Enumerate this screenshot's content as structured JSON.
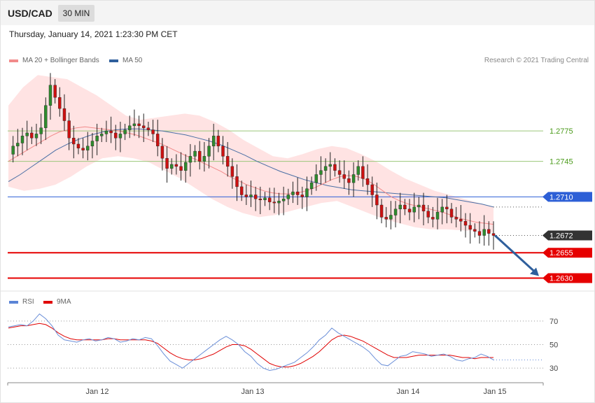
{
  "header": {
    "pair": "USD/CAD",
    "timeframe": "30 MIN",
    "datetime": "Thursday, January 14, 2021 1:23:30 PM CET"
  },
  "legend": {
    "ma20_bb": "MA 20 + Bollinger Bands",
    "ma50": "MA 50",
    "rsi": "RSI",
    "rsi_ma": "9MA"
  },
  "credit": "Research © 2021 Trading Central",
  "colors": {
    "bullish": "#2e8b2e",
    "bearish": "#cc1111",
    "bollinger_fill": "#ffe3e3",
    "ma20": "#f28b8b",
    "ma50": "#4a6fa5",
    "resistance": "#9bc77a",
    "pivot": "#2d5fd6",
    "support": "#e60000",
    "current_price_tag": "#333333",
    "arrow": "#2f5f9c"
  },
  "chart_data": [
    {
      "type": "candlestick",
      "title": "USD/CAD 30 MIN",
      "x_ticks": [
        "Jan 12",
        "Jan 13",
        "Jan 14",
        "Jan 15"
      ],
      "ylim": [
        1.262,
        1.2835
      ],
      "levels": [
        {
          "value": 1.2775,
          "label": "1.2775",
          "kind": "resistance"
        },
        {
          "value": 1.2745,
          "label": "1.2745",
          "kind": "resistance"
        },
        {
          "value": 1.271,
          "label": "1.2710",
          "kind": "pivot"
        },
        {
          "value": 1.2672,
          "label": "1.2672",
          "kind": "current"
        },
        {
          "value": 1.2655,
          "label": "1.2655",
          "kind": "support"
        },
        {
          "value": 1.263,
          "label": "1.2630",
          "kind": "support"
        }
      ],
      "close_path": [
        1.2752,
        1.276,
        1.2763,
        1.277,
        1.2773,
        1.2768,
        1.2772,
        1.2778,
        1.28,
        1.282,
        1.2808,
        1.2797,
        1.2785,
        1.2768,
        1.2762,
        1.2758,
        1.2756,
        1.276,
        1.2765,
        1.277,
        1.2772,
        1.2775,
        1.2773,
        1.2768,
        1.2772,
        1.2776,
        1.278,
        1.2782,
        1.278,
        1.2778,
        1.2776,
        1.2772,
        1.276,
        1.2748,
        1.2738,
        1.2742,
        1.274,
        1.2736,
        1.2744,
        1.275,
        1.2755,
        1.2745,
        1.275,
        1.276,
        1.277,
        1.276,
        1.275,
        1.274,
        1.273,
        1.272,
        1.2712,
        1.271,
        1.2712,
        1.2708,
        1.2707,
        1.2709,
        1.2705,
        1.2704,
        1.2706,
        1.2708,
        1.2712,
        1.2715,
        1.2712,
        1.271,
        1.2718,
        1.2724,
        1.2732,
        1.2736,
        1.274,
        1.2742,
        1.2736,
        1.2732,
        1.2728,
        1.2724,
        1.2732,
        1.274,
        1.2728,
        1.2722,
        1.2712,
        1.2702,
        1.269,
        1.2688,
        1.2692,
        1.2698,
        1.2702,
        1.2698,
        1.2695,
        1.27,
        1.2702,
        1.2696,
        1.269,
        1.2688,
        1.2695,
        1.27,
        1.2698,
        1.269,
        1.2688,
        1.2686,
        1.2682,
        1.2678,
        1.2676,
        1.2672,
        1.2678,
        1.2674,
        1.2672
      ],
      "ma20": [
        1.2745,
        1.275,
        1.2755,
        1.276,
        1.2765,
        1.277,
        1.2774,
        1.2776,
        1.2778,
        1.2779,
        1.2778,
        1.2777,
        1.2776,
        1.2775,
        1.2773,
        1.2771,
        1.2768,
        1.2765,
        1.2762,
        1.2758,
        1.2754,
        1.275,
        1.2747,
        1.2743,
        1.2739,
        1.2735,
        1.273,
        1.2726,
        1.2722,
        1.2719,
        1.2716,
        1.2714,
        1.2713,
        1.2713,
        1.2714,
        1.2716,
        1.2719,
        1.2723,
        1.2727,
        1.273,
        1.2731,
        1.273,
        1.2727,
        1.2722,
        1.2716,
        1.271,
        1.2706,
        1.2703,
        1.2701,
        1.2699,
        1.2697,
        1.2695,
        1.2692,
        1.2689,
        1.2687,
        1.2685,
        1.2684,
        1.2683
      ],
      "ma50": [
        1.2725,
        1.2732,
        1.274,
        1.2748,
        1.2756,
        1.2762,
        1.2767,
        1.2771,
        1.2774,
        1.2776,
        1.2777,
        1.2777,
        1.2776,
        1.2775,
        1.2773,
        1.2771,
        1.2768,
        1.2765,
        1.2761,
        1.2756,
        1.2751,
        1.2745,
        1.274,
        1.2735,
        1.2731,
        1.2727,
        1.2724,
        1.2721,
        1.2719,
        1.2717,
        1.2716,
        1.2715,
        1.2714,
        1.2713,
        1.2712,
        1.2711,
        1.271,
        1.2709,
        1.2707,
        1.2705,
        1.2703,
        1.27
      ],
      "bollinger_upper": [
        1.28,
        1.2818,
        1.283,
        1.2828,
        1.2826,
        1.2818,
        1.281,
        1.28,
        1.279,
        1.2786,
        1.2788,
        1.279,
        1.2792,
        1.279,
        1.2784,
        1.2776,
        1.2766,
        1.2758,
        1.275,
        1.2748,
        1.2752,
        1.2757,
        1.276,
        1.2758,
        1.2752,
        1.2745,
        1.2736,
        1.2728,
        1.2722,
        1.2716,
        1.2712,
        1.2708,
        1.2704,
        1.27
      ],
      "bollinger_lower": [
        1.272,
        1.2716,
        1.2718,
        1.2722,
        1.273,
        1.274,
        1.2748,
        1.275,
        1.2748,
        1.2744,
        1.2736,
        1.2728,
        1.2718,
        1.2708,
        1.27,
        1.2694,
        1.269,
        1.2692,
        1.2696,
        1.27,
        1.2704,
        1.2706,
        1.27,
        1.2694,
        1.2688,
        1.2684,
        1.268,
        1.2678,
        1.2678,
        1.2677,
        1.2676,
        1.2675
      ],
      "projection": {
        "from": 1.2672,
        "to": 1.263
      }
    },
    {
      "type": "line",
      "title": "RSI",
      "ylim": [
        20,
        80
      ],
      "y_ticks": [
        70,
        50,
        30
      ],
      "series": [
        {
          "name": "RSI",
          "values": [
            65,
            66,
            67,
            66,
            70,
            76,
            72,
            66,
            58,
            54,
            53,
            52,
            54,
            55,
            53,
            54,
            56,
            55,
            52,
            53,
            55,
            54,
            56,
            55,
            49,
            42,
            36,
            33,
            30,
            34,
            38,
            42,
            46,
            50,
            54,
            57,
            54,
            50,
            44,
            40,
            34,
            30,
            28,
            29,
            31,
            33,
            35,
            39,
            43,
            48,
            54,
            58,
            64,
            60,
            57,
            54,
            51,
            48,
            44,
            38,
            33,
            32,
            36,
            40,
            41,
            44,
            43,
            42,
            40,
            41,
            42,
            40,
            37,
            36,
            38,
            39,
            42,
            40,
            37
          ]
        },
        {
          "name": "9MA",
          "values": [
            64,
            65,
            66,
            66,
            67,
            68,
            67,
            64,
            60,
            57,
            55,
            54,
            54,
            54,
            54,
            54,
            55,
            55,
            54,
            54,
            54,
            54,
            54,
            53,
            51,
            47,
            43,
            40,
            38,
            37,
            37,
            38,
            40,
            42,
            45,
            48,
            50,
            50,
            49,
            46,
            42,
            38,
            34,
            32,
            31,
            31,
            32,
            34,
            37,
            40,
            44,
            49,
            54,
            57,
            58,
            57,
            55,
            53,
            50,
            47,
            44,
            41,
            39,
            39,
            39,
            40,
            41,
            41,
            41,
            41,
            41,
            41,
            40,
            39,
            39,
            38,
            39,
            39,
            39
          ]
        }
      ]
    }
  ]
}
